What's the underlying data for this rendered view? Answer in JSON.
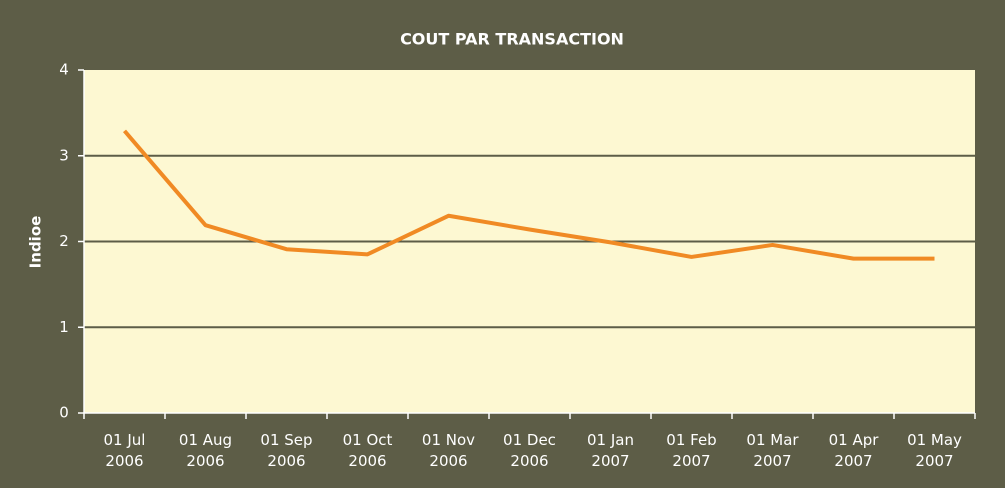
{
  "chart_data": {
    "type": "line",
    "title": "COUT PAR TRANSACTION",
    "y_label": "Indioe",
    "categories": [
      "01 Jul 2006",
      "01 Aug 2006",
      "01 Sep 2006",
      "01 Oct 2006",
      "01 Nov 2006",
      "01 Dec 2006",
      "01 Jan 2007",
      "01 Feb 2007",
      "01 Mar 2007",
      "01 Apr 2007",
      "01 May 2007"
    ],
    "series": [
      {
        "name": "Cout par transaction",
        "color": "#f08a24",
        "values": [
          3.29,
          2.19,
          1.91,
          1.85,
          2.3,
          2.14,
          1.99,
          1.82,
          1.96,
          1.8,
          1.8
        ]
      }
    ],
    "ylim": [
      0,
      4
    ],
    "yticks": [
      0,
      1,
      2,
      3,
      4
    ],
    "grid": true
  }
}
